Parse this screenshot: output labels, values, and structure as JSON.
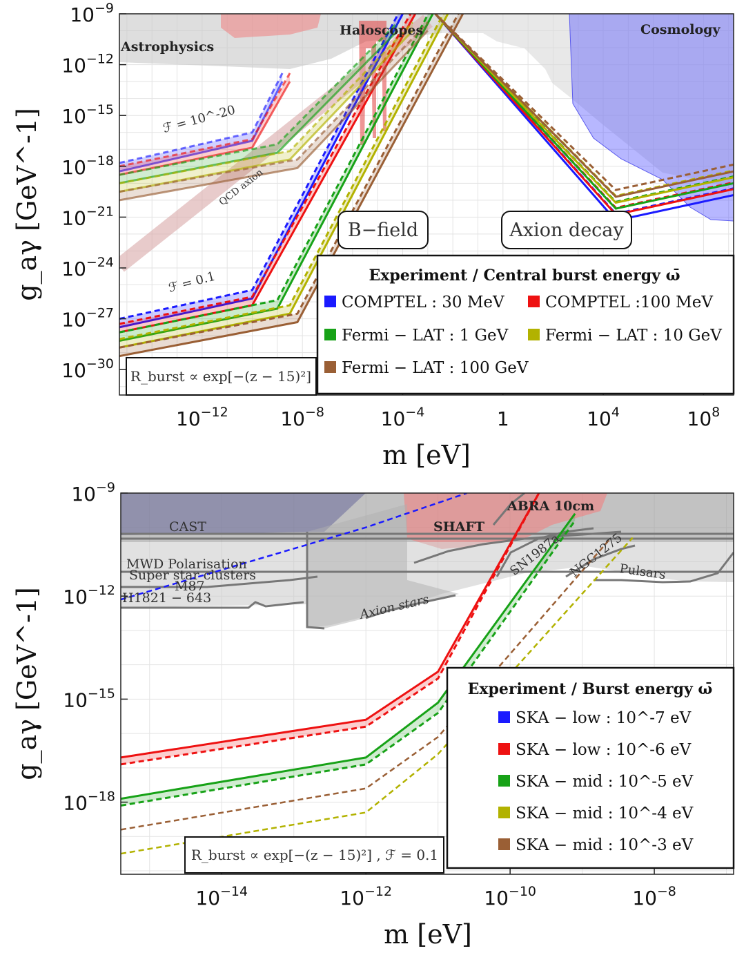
{
  "chart_data": [
    {
      "type": "line",
      "xlabel": "m [eV]",
      "ylabel": "g_aγ [GeV^-1]",
      "x_scale": "log",
      "y_scale": "log",
      "xlim_log10": [
        -15.3,
        9.2
      ],
      "ylim_log10": [
        -31.5,
        -9
      ],
      "x_ticks": [
        {
          "label": "10^-12",
          "v": -12
        },
        {
          "label": "10^-8",
          "v": -8
        },
        {
          "label": "10^-4",
          "v": -4
        },
        {
          "label": "1",
          "v": 0
        },
        {
          "label": "10^4",
          "v": 4
        },
        {
          "label": "10^8",
          "v": 8
        }
      ],
      "y_ticks": [
        {
          "label": "10^-9",
          "v": -9
        },
        {
          "label": "10^-12",
          "v": -12
        },
        {
          "label": "10^-15",
          "v": -15
        },
        {
          "label": "10^-18",
          "v": -18
        },
        {
          "label": "10^-21",
          "v": -21
        },
        {
          "label": "10^-24",
          "v": -24
        },
        {
          "label": "10^-27",
          "v": -27
        },
        {
          "label": "10^-30",
          "v": -30
        }
      ],
      "region_labels": [
        "Astrophysics",
        "Haloscopes",
        "Cosmology"
      ],
      "annotations": [
        "ℱ = 10^-20",
        "ℱ = 0.1",
        "QCD axion"
      ],
      "boxes": [
        "B−field",
        "Axion decay"
      ],
      "formula": "R_burst ∝ exp[−(z − 15)²]",
      "legend_title": "Experiment / Central burst energy ω̄",
      "legend_position": "bottom-right",
      "series": [
        {
          "name": "COMPTEL : 30 MeV",
          "color": "#1a1aff",
          "F01_log10_x": [
            -15.3,
            -10,
            -4
          ],
          "F01_log10_y": [
            -27.5,
            -25.8,
            -9
          ],
          "F1e20_log10_x": [
            -15.3,
            -10,
            -8.8
          ],
          "F1e20_log10_y": [
            -18.3,
            -16.5,
            -13
          ]
        },
        {
          "name": "COMPTEL :100 MeV",
          "color": "#ee1111",
          "F01_log10_x": [
            -15.3,
            -10,
            -3.5
          ],
          "F01_log10_y": [
            -27.8,
            -26.2,
            -9
          ],
          "F1e20_log10_x": [
            -15.3,
            -10,
            -8.5
          ],
          "F1e20_log10_y": [
            -18.5,
            -16.9,
            -13
          ]
        },
        {
          "name": "Fermi − LAT : 1 GeV",
          "color": "#17a217",
          "F01_log10_x": [
            -15.3,
            -9,
            -2.8
          ],
          "F01_log10_y": [
            -28.3,
            -26.4,
            -9
          ],
          "F1e20_log10_x": [
            -15.3,
            -9,
            -4.2
          ],
          "F1e20_log10_y": [
            -19,
            -17.2,
            -10
          ]
        },
        {
          "name": "Fermi − LAT : 10 GeV",
          "color": "#b2b200",
          "F01_log10_x": [
            -15.3,
            -8.5,
            -2.2
          ],
          "F01_log10_y": [
            -28.7,
            -26.7,
            -9
          ],
          "F1e20_log10_x": [
            -15.3,
            -8.5,
            -3.6
          ],
          "F1e20_log10_y": [
            -19.5,
            -17.6,
            -10
          ]
        },
        {
          "name": "Fermi − LAT : 100 GeV",
          "color": "#9a5f35",
          "F01_log10_x": [
            -15.3,
            -8.2,
            -1.6
          ],
          "F01_log10_y": [
            -29.2,
            -27.2,
            -9
          ],
          "F1e20_log10_x": [
            -15.3,
            -8.2,
            -3
          ],
          "F1e20_log10_y": [
            -20,
            -18.1,
            -10
          ]
        }
      ],
      "decay_branch": {
        "log10_x": [
          -2.7,
          4.5,
          9.2
        ],
        "log10_y": [
          -9,
          -20.5,
          -19
        ]
      }
    },
    {
      "type": "line",
      "xlabel": "m [eV]",
      "ylabel": "g_aγ [GeV^-1]",
      "x_scale": "log",
      "y_scale": "log",
      "xlim_log10": [
        -15.4,
        -6.9
      ],
      "ylim_log10": [
        -20.1,
        -9
      ],
      "x_ticks": [
        {
          "label": "10^-14",
          "v": -14
        },
        {
          "label": "10^-12",
          "v": -12
        },
        {
          "label": "10^-10",
          "v": -10
        },
        {
          "label": "10^-8",
          "v": -8
        }
      ],
      "y_ticks": [
        {
          "label": "10^-9",
          "v": -9
        },
        {
          "label": "10^-12",
          "v": -12
        },
        {
          "label": "10^-15",
          "v": -15
        },
        {
          "label": "10^-18",
          "v": -18
        }
      ],
      "constraint_labels": [
        "CAST",
        "SHAFT",
        "ABRA 10cm",
        "MWD Polarisation",
        "Super star clusters",
        "M87",
        "H1821 − 643",
        "SN1987a",
        "NGC1275",
        "Pulsars",
        "Axion stars"
      ],
      "formula": "R_burst ∝ exp[−(z − 15)²]  ,  ℱ = 0.1",
      "legend_title": "Experiment / Burst energy ω̄",
      "legend_position": "bottom-right",
      "series": [
        {
          "name": "SKA − low : 10^-7 eV",
          "color": "#1a1aff",
          "log10_x": [
            -15.4,
            -12,
            -10.6
          ],
          "log10_y": [
            -12.1,
            -10,
            -9
          ]
        },
        {
          "name": "SKA − low : 10^-6 eV",
          "color": "#ee1111",
          "log10_x": [
            -15.4,
            -12,
            -11,
            -9.6
          ],
          "log10_y": [
            -16.7,
            -15.6,
            -14.2,
            -9
          ],
          "dashed_log10_y": [
            -16.9,
            -15.8,
            -14.4,
            -9
          ]
        },
        {
          "name": "SKA − mid : 10^-5 eV",
          "color": "#17a217",
          "log10_x": [
            -15.4,
            -12,
            -11,
            -9.1
          ],
          "log10_y": [
            -17.9,
            -16.7,
            -15.1,
            -9.6
          ],
          "dashed_log10_y": [
            -18.1,
            -16.9,
            -15.4,
            -9.8
          ]
        },
        {
          "name": "SKA − mid : 10^-4 eV",
          "color": "#b2b200",
          "log10_x": [
            -15.4,
            -12,
            -11,
            -8.3
          ],
          "log10_y": [
            -19.5,
            -18.3,
            -16.6,
            -10.3
          ]
        },
        {
          "name": "SKA − mid : 10^-3 eV",
          "color": "#9a5f35",
          "log10_x": [
            -15.4,
            -12,
            -11,
            -8.6
          ],
          "log10_y": [
            -18.8,
            -17.6,
            -16.1,
            -10.3
          ]
        }
      ]
    }
  ]
}
